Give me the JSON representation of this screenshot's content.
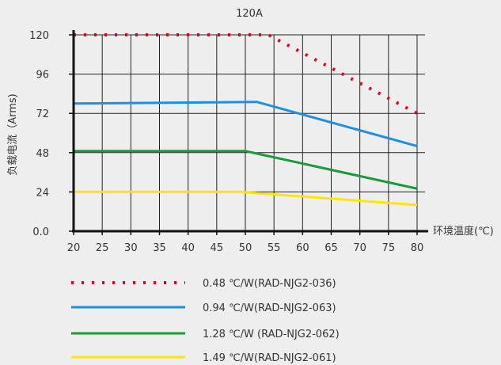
{
  "chart_data": {
    "type": "line",
    "title": "120A",
    "xlabel": "环境温度(℃)",
    "ylabel": "负载电流（Arms)",
    "x_ticks": [
      "20",
      "25",
      "30",
      "35",
      "40",
      "45",
      "50",
      "55",
      "60",
      "65",
      "70",
      "75",
      "80"
    ],
    "y_ticks": [
      "0.0",
      "24",
      "48",
      "72",
      "96",
      "120"
    ],
    "xlim": [
      20,
      80
    ],
    "ylim": [
      0,
      120
    ],
    "grid": true,
    "legend_position": "bottom",
    "series": [
      {
        "name": "0.48 ℃/W(RAD-NJG2-036)",
        "color": "#e0001b",
        "style": "dotted",
        "points": [
          [
            20,
            120
          ],
          [
            54,
            120
          ],
          [
            80,
            72
          ]
        ]
      },
      {
        "name": "0.94 ℃/W(RAD-NJG2-063)",
        "color": "#1f8fe0",
        "style": "solid",
        "points": [
          [
            20,
            78
          ],
          [
            52,
            79
          ],
          [
            80,
            52
          ]
        ]
      },
      {
        "name": "1.28 ℃/W  (RAD-NJG2-062)",
        "color": "#1a9a3a",
        "style": "solid",
        "points": [
          [
            20,
            49
          ],
          [
            50,
            49
          ],
          [
            80,
            26
          ]
        ]
      },
      {
        "name": "1.49 ℃/W(RAD-NJG2-061)",
        "color": "#ffe600",
        "style": "solid",
        "points": [
          [
            20,
            24
          ],
          [
            49,
            24
          ],
          [
            80,
            16
          ]
        ]
      }
    ]
  }
}
